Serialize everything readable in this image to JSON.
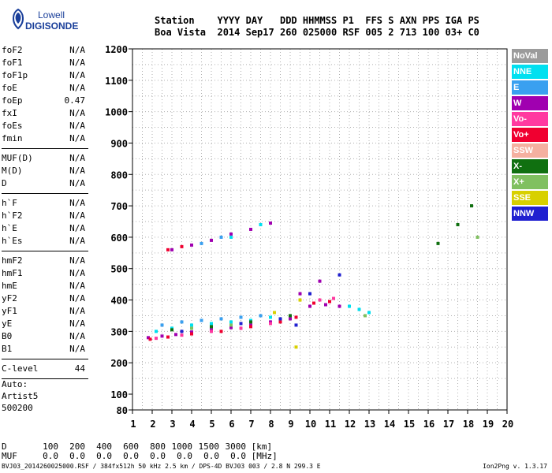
{
  "logo": {
    "line1": "Lowell",
    "line2": "DIGISONDE"
  },
  "header": {
    "labels": [
      "Station",
      "YYYY",
      "DAY",
      "DDD",
      "HHMMSS",
      "P1",
      "FFS",
      "S",
      "AXN",
      "PPS",
      "IGA",
      "PS"
    ],
    "values": [
      "Boa Vista",
      "2014",
      "Sep17",
      "260",
      "025000",
      "RSF",
      "005",
      "2",
      "713",
      "100",
      "03+",
      "C0"
    ]
  },
  "params": {
    "group1": [
      [
        "foF2",
        "N/A"
      ],
      [
        "foF1",
        "N/A"
      ],
      [
        "foF1p",
        "N/A"
      ],
      [
        "foE",
        "N/A"
      ],
      [
        "foEp",
        "0.47"
      ],
      [
        "fxI",
        "N/A"
      ],
      [
        "foEs",
        "N/A"
      ],
      [
        "fmin",
        "N/A"
      ]
    ],
    "group2": [
      [
        "MUF(D)",
        "N/A"
      ],
      [
        "M(D)",
        "N/A"
      ],
      [
        "D",
        "N/A"
      ]
    ],
    "group3": [
      [
        "h`F",
        "N/A"
      ],
      [
        "h`F2",
        "N/A"
      ],
      [
        "h`E",
        "N/A"
      ],
      [
        "h`Es",
        "N/A"
      ]
    ],
    "group4": [
      [
        "hmF2",
        "N/A"
      ],
      [
        "hmF1",
        "N/A"
      ],
      [
        "hmE",
        "N/A"
      ],
      [
        "yF2",
        "N/A"
      ],
      [
        "yF1",
        "N/A"
      ],
      [
        "yE",
        "N/A"
      ],
      [
        "B0",
        "N/A"
      ],
      [
        "B1",
        "N/A"
      ]
    ],
    "clevel": [
      "C-level",
      "44"
    ]
  },
  "extra": {
    "line1": "Auto:",
    "line2": "Artist5",
    "line3": "500200"
  },
  "legend": [
    {
      "name": "NoVal",
      "color": "#9b9b9b"
    },
    {
      "name": "NNE",
      "color": "#00e0f0"
    },
    {
      "name": "E",
      "color": "#3aa0f0"
    },
    {
      "name": "W",
      "color": "#a000b0"
    },
    {
      "name": "Vo-",
      "color": "#ff3aa0"
    },
    {
      "name": "Vo+",
      "color": "#f00030"
    },
    {
      "name": "SSW",
      "color": "#f5b0a0"
    },
    {
      "name": "X-",
      "color": "#107010"
    },
    {
      "name": "X+",
      "color": "#80c060"
    },
    {
      "name": "SSE",
      "color": "#d8d000"
    },
    {
      "name": "NNW",
      "color": "#2020d0"
    }
  ],
  "muf_table": {
    "d_label": "D",
    "d_values": [
      "100",
      "200",
      "400",
      "600",
      "800",
      "1000",
      "1500",
      "3000"
    ],
    "d_unit": "[km]",
    "muf_label": "MUF",
    "muf_values": [
      "0.0",
      "0.0",
      "0.0",
      "0.0",
      "0.0",
      "0.0",
      "0.0",
      "0.0"
    ],
    "muf_unit": "[MHz]"
  },
  "footer": {
    "left": "BVJ03_2014260025000.RSF / 384fx512h 50 kHz 2.5 km / DPS-4D BVJ03 003 / 2.8 N 299.3 E",
    "right": "Ion2Png v. 1.3.17"
  },
  "chart_data": {
    "type": "scatter",
    "title": "",
    "xlabel": "",
    "ylabel": "",
    "xlim": [
      1,
      20
    ],
    "ylim": [
      80,
      1200
    ],
    "x_ticks": [
      1,
      2,
      3,
      4,
      5,
      6,
      7,
      8,
      9,
      10,
      11,
      12,
      13,
      14,
      15,
      16,
      17,
      18,
      19,
      20
    ],
    "y_ticks": [
      80,
      100,
      200,
      300,
      400,
      500,
      600,
      700,
      800,
      900,
      1000,
      1100,
      1200
    ],
    "grid": true,
    "legend_position": "right",
    "series": [
      {
        "name": "W",
        "color": "#a000b0",
        "points": [
          [
            1.8,
            280
          ],
          [
            2.5,
            285
          ],
          [
            3.2,
            290
          ],
          [
            4.0,
            298
          ],
          [
            5.0,
            305
          ],
          [
            6.0,
            312
          ],
          [
            7.0,
            320
          ],
          [
            8.0,
            330
          ],
          [
            9.0,
            340
          ],
          [
            10.0,
            380
          ],
          [
            10.8,
            385
          ],
          [
            11.5,
            380
          ],
          [
            3.0,
            560
          ],
          [
            4.0,
            575
          ],
          [
            5.0,
            590
          ],
          [
            6.0,
            610
          ],
          [
            7.0,
            625
          ],
          [
            8.0,
            645
          ],
          [
            9.5,
            420
          ],
          [
            10.5,
            460
          ]
        ]
      },
      {
        "name": "NNE",
        "color": "#00e0f0",
        "points": [
          [
            2.2,
            300
          ],
          [
            3.0,
            310
          ],
          [
            4.0,
            320
          ],
          [
            5.0,
            325
          ],
          [
            6.0,
            330
          ],
          [
            7.0,
            335
          ],
          [
            8.0,
            345
          ],
          [
            12.0,
            380
          ],
          [
            12.5,
            370
          ],
          [
            13.0,
            360
          ],
          [
            6.0,
            600
          ],
          [
            7.5,
            640
          ]
        ]
      },
      {
        "name": "E",
        "color": "#3aa0f0",
        "points": [
          [
            2.5,
            320
          ],
          [
            3.5,
            330
          ],
          [
            4.5,
            335
          ],
          [
            5.5,
            340
          ],
          [
            6.5,
            345
          ],
          [
            7.5,
            350
          ],
          [
            4.5,
            580
          ],
          [
            5.5,
            600
          ]
        ]
      },
      {
        "name": "Vo+",
        "color": "#f00030",
        "points": [
          [
            1.9,
            275
          ],
          [
            2.8,
            282
          ],
          [
            4.0,
            292
          ],
          [
            5.5,
            300
          ],
          [
            7.0,
            315
          ],
          [
            8.5,
            330
          ],
          [
            9.3,
            345
          ],
          [
            10.2,
            390
          ],
          [
            11.0,
            395
          ],
          [
            2.8,
            560
          ],
          [
            3.5,
            570
          ]
        ]
      },
      {
        "name": "Vo-",
        "color": "#ff3aa0",
        "points": [
          [
            2.2,
            278
          ],
          [
            3.5,
            288
          ],
          [
            5.0,
            300
          ],
          [
            6.5,
            310
          ],
          [
            8.0,
            325
          ],
          [
            10.5,
            400
          ],
          [
            11.2,
            405
          ]
        ]
      },
      {
        "name": "X-",
        "color": "#107010",
        "points": [
          [
            3.0,
            305
          ],
          [
            5.0,
            315
          ],
          [
            7.0,
            330
          ],
          [
            9.0,
            350
          ],
          [
            17.5,
            640
          ],
          [
            18.2,
            700
          ],
          [
            16.5,
            580
          ]
        ]
      },
      {
        "name": "X+",
        "color": "#80c060",
        "points": [
          [
            4.0,
            310
          ],
          [
            6.0,
            320
          ],
          [
            8.5,
            340
          ],
          [
            12.8,
            350
          ],
          [
            18.5,
            600
          ]
        ]
      },
      {
        "name": "SSE",
        "color": "#d8d000",
        "points": [
          [
            9.3,
            250
          ],
          [
            9.5,
            400
          ],
          [
            8.2,
            360
          ]
        ]
      },
      {
        "name": "NNW",
        "color": "#2020d0",
        "points": [
          [
            3.5,
            300
          ],
          [
            6.5,
            325
          ],
          [
            8.5,
            340
          ],
          [
            10.0,
            420
          ],
          [
            11.5,
            480
          ],
          [
            9.3,
            320
          ]
        ]
      }
    ]
  }
}
